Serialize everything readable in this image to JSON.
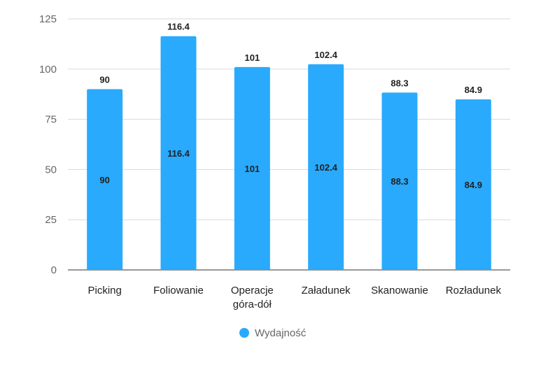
{
  "chart_data": {
    "type": "bar",
    "categories": [
      [
        "Picking"
      ],
      [
        "Foliowanie"
      ],
      [
        "Operacje",
        "góra-dół"
      ],
      [
        "Załadunek"
      ],
      [
        "Skanowanie"
      ],
      [
        "Rozładunek"
      ]
    ],
    "series": [
      {
        "name": "Wydajność",
        "values": [
          90,
          116.4,
          101,
          102.4,
          88.3,
          84.9
        ],
        "value_labels": [
          "90",
          "116.4",
          "101",
          "102.4",
          "88.3",
          "84.9"
        ],
        "color": "#29aafd"
      }
    ],
    "ylim": [
      0,
      125
    ],
    "yticks": [
      0,
      25,
      50,
      75,
      100,
      125
    ],
    "grid": true,
    "legend": "bottom-center",
    "title": "",
    "xlabel": "",
    "ylabel": ""
  }
}
